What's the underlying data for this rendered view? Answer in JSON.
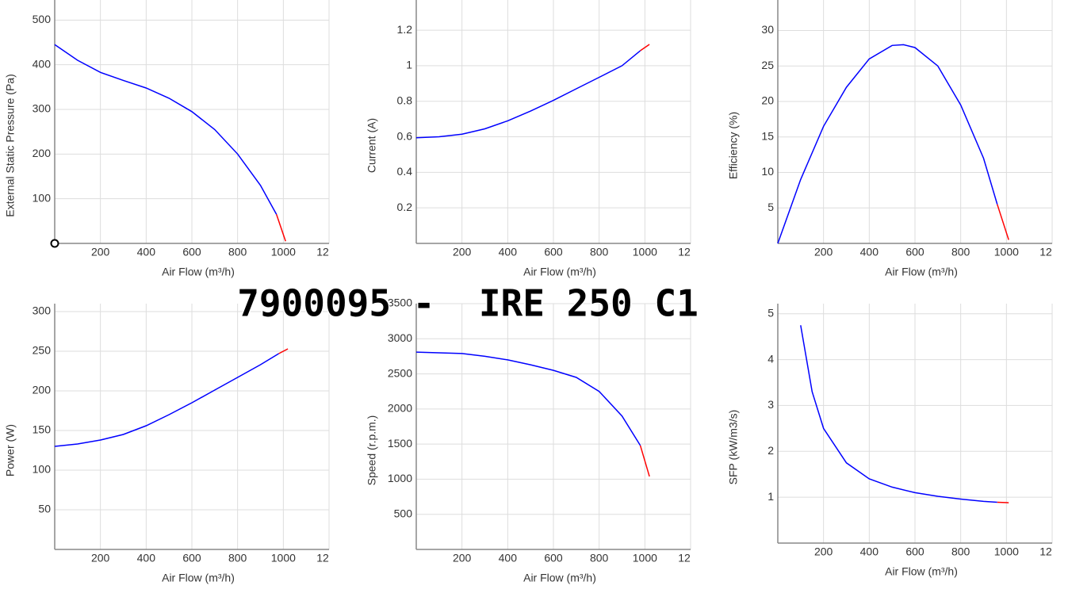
{
  "title": "7900095 -  IRE 250 C1",
  "chart_data": [
    {
      "type": "line",
      "xlabel": "Air Flow (m³/h)",
      "ylabel": "External Static Pressure (Pa)",
      "xlim": [
        0,
        1200
      ],
      "xticks": [
        200,
        400,
        600,
        800,
        1000,
        {
          "value": 1200,
          "label": "12"
        }
      ],
      "ylim": [
        0,
        545
      ],
      "yticks": [
        100,
        200,
        300,
        400,
        500
      ],
      "grid": true,
      "operating_point": {
        "x": 0,
        "y": 0
      },
      "series": [
        {
          "color": "#0000ff",
          "x": [
            0,
            100,
            200,
            300,
            400,
            500,
            600,
            700,
            800,
            900,
            970
          ],
          "values": [
            445,
            410,
            383,
            365,
            348,
            325,
            295,
            255,
            200,
            130,
            65
          ]
        },
        {
          "color": "#ff0000",
          "x": [
            970,
            1010
          ],
          "values": [
            65,
            5
          ]
        }
      ]
    },
    {
      "type": "line",
      "xlabel": "Air Flow (m³/h)",
      "ylabel": "Current (A)",
      "xlim": [
        0,
        1200
      ],
      "xticks": [
        200,
        400,
        600,
        800,
        1000,
        {
          "value": 1200,
          "label": "12"
        }
      ],
      "ylim": [
        0,
        1.37
      ],
      "yticks": [
        0.2,
        0.4,
        0.6,
        0.8,
        1,
        1.2
      ],
      "grid": true,
      "series": [
        {
          "color": "#0000ff",
          "x": [
            0,
            100,
            200,
            300,
            400,
            500,
            600,
            700,
            800,
            900,
            980
          ],
          "values": [
            0.595,
            0.6,
            0.615,
            0.645,
            0.69,
            0.745,
            0.805,
            0.87,
            0.935,
            1.0,
            1.085
          ]
        },
        {
          "color": "#ff0000",
          "x": [
            980,
            1020
          ],
          "values": [
            1.085,
            1.12
          ]
        }
      ]
    },
    {
      "type": "line",
      "xlabel": "Air Flow (m³/h)",
      "ylabel": "Efficiency (%)",
      "xlim": [
        0,
        1200
      ],
      "xticks": [
        200,
        400,
        600,
        800,
        1000,
        {
          "value": 1200,
          "label": "12"
        }
      ],
      "ylim": [
        0,
        34.3
      ],
      "yticks": [
        5,
        10,
        15,
        20,
        25,
        30
      ],
      "grid": true,
      "series": [
        {
          "color": "#0000ff",
          "x": [
            0,
            100,
            200,
            300,
            400,
            500,
            550,
            600,
            700,
            800,
            900,
            960
          ],
          "values": [
            0,
            9,
            16.5,
            22,
            26,
            27.9,
            28,
            27.6,
            25,
            19.5,
            12,
            5.5
          ]
        },
        {
          "color": "#ff0000",
          "x": [
            960,
            1010
          ],
          "values": [
            5.5,
            0.5
          ]
        }
      ]
    },
    {
      "type": "line",
      "xlabel": "Air Flow (m³/h)",
      "ylabel": "Power (W)",
      "xlim": [
        0,
        1200
      ],
      "xticks": [
        200,
        400,
        600,
        800,
        1000,
        {
          "value": 1200,
          "label": "12"
        }
      ],
      "ylim": [
        0,
        310
      ],
      "yticks": [
        50,
        100,
        150,
        200,
        250,
        300
      ],
      "grid": true,
      "series": [
        {
          "color": "#0000ff",
          "x": [
            0,
            100,
            200,
            300,
            400,
            500,
            600,
            700,
            800,
            900,
            980
          ],
          "values": [
            130,
            133,
            138,
            145,
            156,
            170,
            185,
            201,
            217,
            233,
            247
          ]
        },
        {
          "color": "#ff0000",
          "x": [
            980,
            1020
          ],
          "values": [
            247,
            253
          ]
        }
      ]
    },
    {
      "type": "line",
      "xlabel": "Air Flow (m³/h)",
      "ylabel": "Speed (r.p.m.)",
      "xlim": [
        0,
        1200
      ],
      "xticks": [
        200,
        400,
        600,
        800,
        1000,
        {
          "value": 1200,
          "label": "12"
        }
      ],
      "ylim": [
        0,
        3500
      ],
      "yticks": [
        500,
        1000,
        1500,
        2000,
        2500,
        3000,
        3500
      ],
      "grid": true,
      "series": [
        {
          "color": "#0000ff",
          "x": [
            0,
            100,
            200,
            300,
            400,
            500,
            600,
            700,
            800,
            900,
            980
          ],
          "values": [
            2810,
            2800,
            2790,
            2750,
            2700,
            2630,
            2550,
            2450,
            2250,
            1900,
            1480
          ]
        },
        {
          "color": "#ff0000",
          "x": [
            980,
            1020
          ],
          "values": [
            1480,
            1040
          ]
        }
      ]
    },
    {
      "type": "line",
      "xlabel": "Air Flow (m³/h)",
      "ylabel": "SFP (kW/m3/s)",
      "xlim": [
        0,
        1200
      ],
      "xticks": [
        200,
        400,
        600,
        800,
        1000,
        {
          "value": 1200,
          "label": "12"
        }
      ],
      "ylim": [
        0,
        5.22
      ],
      "yticks": [
        1,
        2,
        3,
        4,
        5
      ],
      "grid": true,
      "series": [
        {
          "color": "#0000ff",
          "x": [
            100,
            150,
            200,
            300,
            400,
            500,
            600,
            700,
            800,
            900,
            960
          ],
          "values": [
            4.75,
            3.3,
            2.5,
            1.75,
            1.4,
            1.22,
            1.1,
            1.02,
            0.96,
            0.91,
            0.89
          ]
        },
        {
          "color": "#ff0000",
          "x": [
            960,
            1010
          ],
          "values": [
            0.89,
            0.88
          ]
        }
      ]
    }
  ]
}
